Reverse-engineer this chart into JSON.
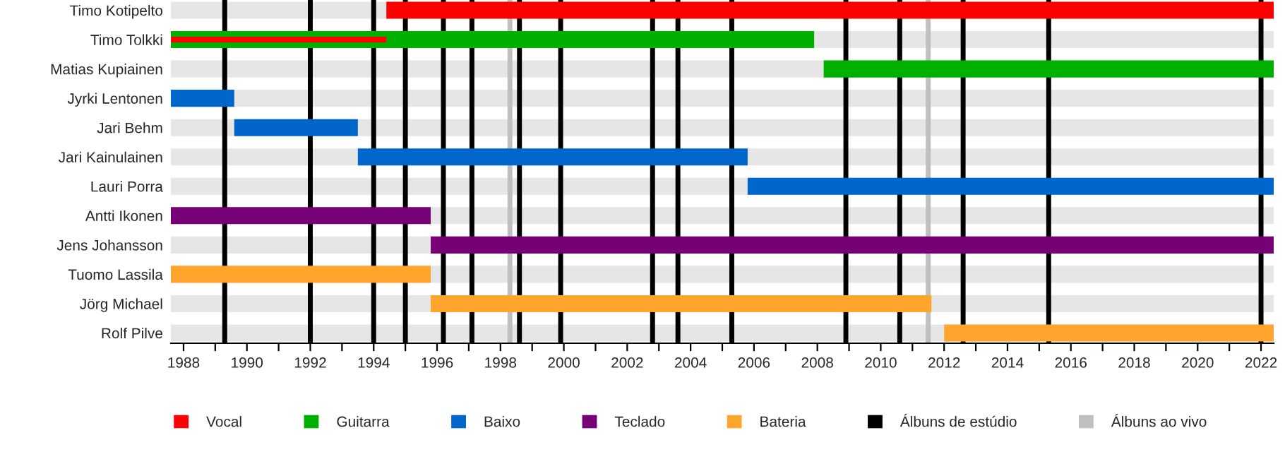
{
  "chart_data": {
    "type": "bar",
    "orientation": "horizontal",
    "categories": [
      "Timo Kotipelto",
      "Timo Tolkki",
      "Matias Kupiainen",
      "Jyrki Lentonen",
      "Jari Behm",
      "Jari Kainulainen",
      "Lauri Porra",
      "Antti Ikonen",
      "Jens Johansson",
      "Tuomo Lassila",
      "Jörg Michael",
      "Rolf Pilve"
    ],
    "series": [
      {
        "name": "Vocal",
        "color": "#ff0000",
        "base": [
          1994.4,
          1987.6,
          null,
          null,
          null,
          null,
          null,
          null,
          null,
          null,
          null,
          null
        ],
        "values": [
          28.0,
          6.8,
          null,
          null,
          null,
          null,
          null,
          null,
          null,
          null,
          null,
          null
        ]
      },
      {
        "name": "Guitarra",
        "color": "#00b000",
        "base": [
          null,
          1987.6,
          2008.2,
          null,
          null,
          null,
          null,
          null,
          null,
          null,
          null,
          null
        ],
        "values": [
          null,
          20.3,
          14.2,
          null,
          null,
          null,
          null,
          null,
          null,
          null,
          null,
          null
        ]
      },
      {
        "name": "Baixo",
        "color": "#0066cc",
        "base": [
          null,
          null,
          null,
          1987.6,
          1989.6,
          1993.5,
          2005.8,
          null,
          null,
          null,
          null,
          null
        ],
        "values": [
          null,
          null,
          null,
          2.0,
          3.9,
          12.3,
          16.6,
          null,
          null,
          null,
          null,
          null
        ]
      },
      {
        "name": "Teclado",
        "color": "#770077",
        "base": [
          null,
          null,
          null,
          null,
          null,
          null,
          null,
          1987.6,
          1995.8,
          null,
          null,
          null
        ],
        "values": [
          null,
          null,
          null,
          null,
          null,
          null,
          null,
          8.2,
          26.6,
          null,
          null,
          null
        ]
      },
      {
        "name": "Bateria",
        "color": "#ffa42c",
        "base": [
          null,
          null,
          null,
          null,
          null,
          null,
          null,
          null,
          null,
          1987.6,
          1995.8,
          2012.0
        ],
        "values": [
          null,
          null,
          null,
          null,
          null,
          null,
          null,
          null,
          null,
          8.2,
          15.8,
          10.4
        ]
      }
    ],
    "xlim": [
      1987.6,
      2022.4
    ],
    "xticks": [
      1988,
      {
        "value": 1989,
        "label": null
      },
      1990,
      {
        "value": 1991,
        "label": null
      },
      1992,
      {
        "value": 1993,
        "label": null
      },
      1994,
      {
        "value": 1995,
        "label": null
      },
      1996,
      {
        "value": 1997,
        "label": null
      },
      1998,
      {
        "value": 1999,
        "label": null
      },
      2000,
      {
        "value": 2001,
        "label": null
      },
      2002,
      {
        "value": 2003,
        "label": null
      },
      2004,
      {
        "value": 2005,
        "label": null
      },
      2006,
      {
        "value": 2007,
        "label": null
      },
      2008,
      {
        "value": 2009,
        "label": null
      },
      2010,
      {
        "value": 2011,
        "label": null
      },
      2012,
      {
        "value": 2013,
        "label": null
      },
      2014,
      {
        "value": 2015,
        "label": null
      },
      2016,
      {
        "value": 2017,
        "label": null
      },
      2018,
      {
        "value": 2019,
        "label": null
      },
      2020,
      {
        "value": 2021,
        "label": null
      },
      2022
    ],
    "ref_lines": [
      {
        "axis": "x",
        "value": 1989.3,
        "label": "Álbuns de estúdio",
        "color": "#000000"
      },
      {
        "axis": "x",
        "value": 1992.0,
        "color": "#000000"
      },
      {
        "axis": "x",
        "value": 1994.0,
        "color": "#000000"
      },
      {
        "axis": "x",
        "value": 1995.0,
        "color": "#000000"
      },
      {
        "axis": "x",
        "value": 1996.2,
        "color": "#000000"
      },
      {
        "axis": "x",
        "value": 1997.1,
        "color": "#000000"
      },
      {
        "axis": "x",
        "value": 1998.6,
        "color": "#000000"
      },
      {
        "axis": "x",
        "value": 1999.9,
        "color": "#000000"
      },
      {
        "axis": "x",
        "value": 2002.8,
        "color": "#000000"
      },
      {
        "axis": "x",
        "value": 2003.6,
        "color": "#000000"
      },
      {
        "axis": "x",
        "value": 2005.3,
        "color": "#000000"
      },
      {
        "axis": "x",
        "value": 2008.9,
        "color": "#000000"
      },
      {
        "axis": "x",
        "value": 2010.6,
        "color": "#000000"
      },
      {
        "axis": "x",
        "value": 2012.6,
        "color": "#000000"
      },
      {
        "axis": "x",
        "value": 2015.3,
        "color": "#000000"
      },
      {
        "axis": "x",
        "value": 2022.0,
        "color": "#000000"
      },
      {
        "axis": "x",
        "value": 1998.3,
        "label": "Álbuns ao vivo",
        "color": "#c0c0c0"
      },
      {
        "axis": "x",
        "value": 2011.5,
        "color": "#c0c0c0"
      }
    ],
    "legend": "bottom",
    "grid": false
  }
}
